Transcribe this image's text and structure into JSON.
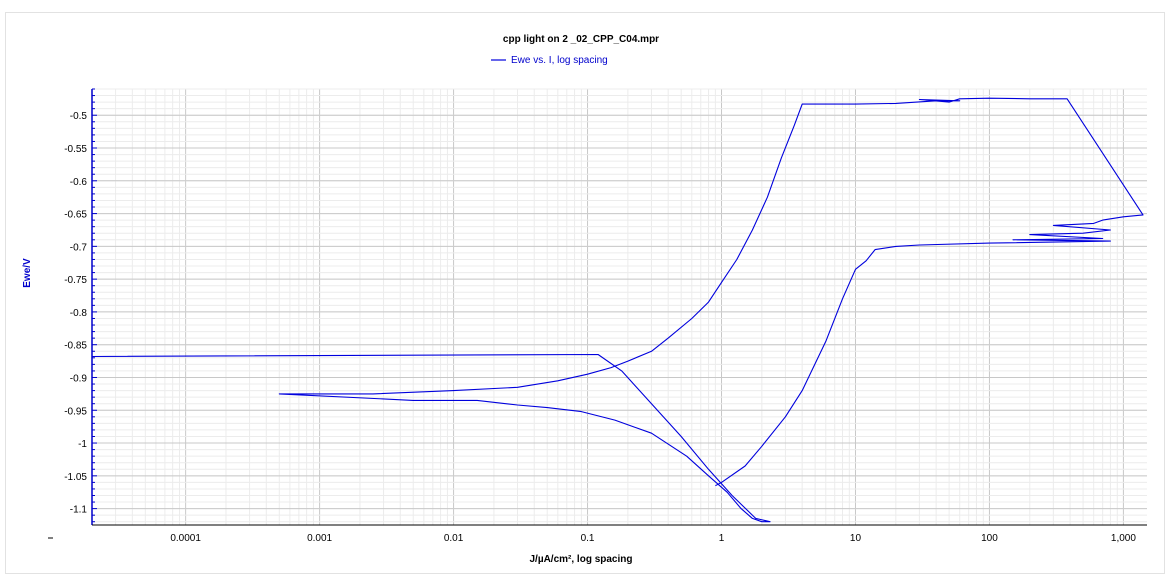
{
  "chart_data": {
    "type": "line",
    "title": "cpp light on 2 _02_CPP_C04.mpr",
    "xlabel": "J/µA/cm², log spacing",
    "ylabel": "Ewe/V",
    "x_scale": "log",
    "xlim": [
      2e-05,
      1500
    ],
    "ylim": [
      -1.125,
      -0.46
    ],
    "grid": true,
    "legend_position": "top-center",
    "x_ticks": [
      0.0001,
      0.001,
      0.01,
      0.1,
      1,
      10,
      100,
      1000
    ],
    "x_tick_labels": [
      "0.0001",
      "0.001",
      "0.01",
      "0.1",
      "1",
      "10",
      "100",
      "1,000"
    ],
    "y_ticks": [
      -0.5,
      -0.55,
      -0.6,
      -0.65,
      -0.7,
      -0.75,
      -0.8,
      -0.85,
      -0.9,
      -0.95,
      -1,
      -1.05,
      -1.1
    ],
    "y_tick_labels": [
      "-0.5",
      "-0.55",
      "-0.6",
      "-0.65",
      "-0.7",
      "-0.75",
      "-0.8",
      "-0.85",
      "-0.9",
      "-0.95",
      "-1",
      "-1.05",
      "-1.1"
    ],
    "colors": {
      "series": "#0000dd",
      "axis_label_y": "#0000cc",
      "grid_major": "#c8c8c8",
      "grid_minor": "#ececec"
    },
    "series": [
      {
        "name": "Ewe vs. I, log spacing",
        "x": [
          2e-05,
          0.12,
          0.18,
          0.3,
          0.5,
          0.8,
          1.2,
          1.8,
          2.3,
          2.0,
          1.7,
          1.4,
          1.1,
          0.8,
          0.55,
          0.3,
          0.16,
          0.09,
          0.05,
          0.03,
          0.015,
          0.005,
          0.0005,
          0.0025,
          0.01,
          0.03,
          0.06,
          0.1,
          0.15,
          0.2,
          0.3,
          0.4,
          0.6,
          0.8,
          1.0,
          1.3,
          1.7,
          2.2,
          2.8,
          3.5,
          4.0,
          10,
          20,
          40,
          60,
          30,
          50,
          60,
          100,
          200,
          380,
          1400,
          1000,
          700,
          600,
          300,
          800,
          500,
          200,
          700,
          150,
          800,
          100,
          30,
          20,
          14,
          12,
          10,
          8,
          6,
          4,
          3,
          2,
          1.5,
          1.0,
          0.9
        ],
        "y": [
          -0.868,
          -0.865,
          -0.89,
          -0.94,
          -0.99,
          -1.04,
          -1.08,
          -1.115,
          -1.12,
          -1.12,
          -1.115,
          -1.1,
          -1.075,
          -1.05,
          -1.02,
          -0.985,
          -0.965,
          -0.952,
          -0.946,
          -0.942,
          -0.935,
          -0.935,
          -0.925,
          -0.925,
          -0.92,
          -0.915,
          -0.905,
          -0.895,
          -0.885,
          -0.875,
          -0.86,
          -0.84,
          -0.81,
          -0.785,
          -0.755,
          -0.72,
          -0.675,
          -0.625,
          -0.565,
          -0.515,
          -0.483,
          -0.483,
          -0.482,
          -0.478,
          -0.478,
          -0.476,
          -0.48,
          -0.475,
          -0.474,
          -0.475,
          -0.475,
          -0.652,
          -0.655,
          -0.66,
          -0.665,
          -0.668,
          -0.675,
          -0.68,
          -0.682,
          -0.688,
          -0.69,
          -0.692,
          -0.695,
          -0.698,
          -0.7,
          -0.705,
          -0.722,
          -0.735,
          -0.78,
          -0.845,
          -0.92,
          -0.96,
          -1.005,
          -1.035,
          -1.06,
          -1.065
        ]
      }
    ]
  }
}
